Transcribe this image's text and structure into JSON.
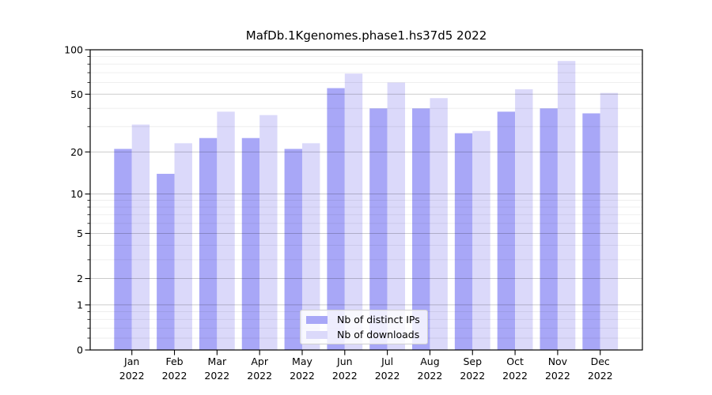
{
  "chart_data": {
    "type": "bar",
    "title": "MafDb.1Kgenomes.phase1.hs37d5 2022",
    "categories": [
      "Jan 2022",
      "Feb 2022",
      "Mar 2022",
      "Apr 2022",
      "May 2022",
      "Jun 2022",
      "Jul 2022",
      "Aug 2022",
      "Sep 2022",
      "Oct 2022",
      "Nov 2022",
      "Dec 2022"
    ],
    "series": [
      {
        "name": "Nb of distinct IPs",
        "color": "#a8a7f7",
        "values": [
          21,
          14,
          25,
          25,
          21,
          55,
          40,
          40,
          27,
          38,
          40,
          37
        ]
      },
      {
        "name": "Nb of downloads",
        "color": "#dbd9fa",
        "values": [
          31,
          23,
          38,
          36,
          23,
          69,
          60,
          47,
          28,
          54,
          84,
          51
        ]
      }
    ],
    "yscale": "log1p",
    "ylim": [
      0,
      100
    ],
    "y_major_ticks": [
      0,
      1,
      2,
      5,
      10,
      20,
      50,
      100
    ],
    "y_minor_ticks": [
      0.2,
      0.4,
      0.6,
      0.8,
      3,
      4,
      6,
      7,
      8,
      9,
      30,
      40,
      60,
      70,
      80,
      90
    ],
    "grid": true,
    "legend_position": "lower center",
    "colors": {
      "grid_major": "rgba(0,0,0,0.20)",
      "grid_minor": "rgba(0,0,0,0.075)",
      "spine": "#000000",
      "tick_label": "#000000"
    }
  }
}
